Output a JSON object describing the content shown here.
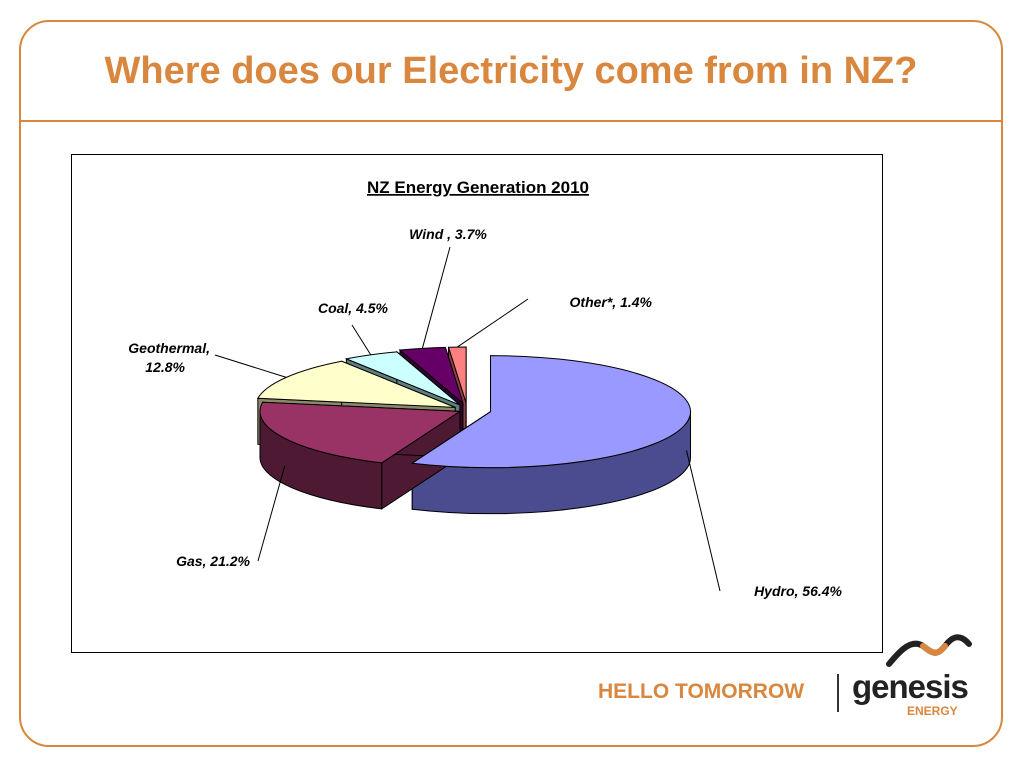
{
  "slide": {
    "title": "Where does our Electricity come from in NZ?"
  },
  "branding": {
    "tagline": "HELLO TOMORROW",
    "brand_name": "genesis",
    "brand_sub": "ENERGY"
  },
  "colors": {
    "accent": "#d9873f"
  },
  "chart_data": {
    "type": "pie",
    "title": "NZ Energy Generation 2010",
    "style": "3d-exploded",
    "slices": [
      {
        "label": "Hydro, 56.4%",
        "name": "Hydro",
        "value": 56.4,
        "color": "#9999ff",
        "side": "#4b4b8f"
      },
      {
        "label": "Gas, 21.2%",
        "name": "Gas",
        "value": 21.2,
        "color": "#993366",
        "side": "#4e1a33"
      },
      {
        "label": "Geothermal, 12.8%",
        "name": "Geothermal",
        "value": 12.8,
        "color": "#ffffcc",
        "side": "#8a8a6a"
      },
      {
        "label": "Coal, 4.5%",
        "name": "Coal",
        "value": 4.5,
        "color": "#ccffff",
        "side": "#5f7f7f"
      },
      {
        "label": "Wind , 3.7%",
        "name": "Wind",
        "value": 3.7,
        "color": "#660066",
        "side": "#330033"
      },
      {
        "label": "Other*, 1.4%",
        "name": "Other*",
        "value": 1.4,
        "color": "#ff8080",
        "side": "#8f4040"
      }
    ]
  }
}
